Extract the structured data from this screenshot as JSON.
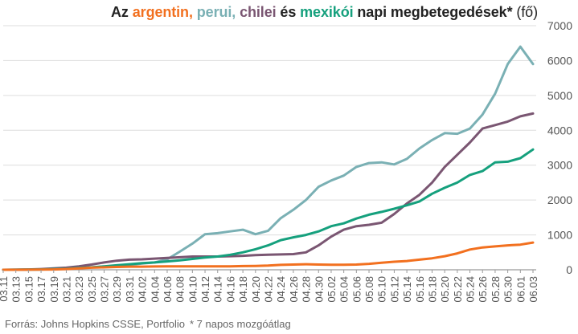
{
  "title": {
    "prefix": "Az",
    "argentina": "argentin,",
    "peru": "perui,",
    "chile": "chilei",
    "conj": "és",
    "mexico": "mexikói",
    "suffix": "napi megbetegedések*",
    "unit": "(fő)"
  },
  "footer": {
    "source": "Forrás: Johns Hopkins CSSE, Portfolio",
    "note": "* 7 napos mozgóátlag"
  },
  "chart_data": {
    "type": "line",
    "x": [
      "03.11",
      "03.13",
      "03.15",
      "03.17",
      "03.19",
      "03.21",
      "03.23",
      "03.25",
      "03.27",
      "03.29",
      "03.31",
      "04.02",
      "04.04",
      "04.06",
      "04.08",
      "04.10",
      "04.12",
      "04.14",
      "04.16",
      "04.18",
      "04.20",
      "04.22",
      "04.24",
      "04.26",
      "04.28",
      "04.30",
      "05.02",
      "05.04",
      "05.06",
      "05.08",
      "05.10",
      "05.12",
      "05.14",
      "05.16",
      "05.18",
      "05.20",
      "05.22",
      "05.24",
      "05.26",
      "05.28",
      "05.30",
      "06.01",
      "06.03"
    ],
    "ylim": [
      0,
      7000
    ],
    "yticks": [
      0,
      1000,
      2000,
      3000,
      4000,
      5000,
      6000,
      7000
    ],
    "grid": true,
    "legend": "title",
    "series": [
      {
        "key": "peru",
        "color": "#7ab0b4",
        "values": [
          0,
          2,
          5,
          10,
          18,
          30,
          50,
          70,
          90,
          110,
          140,
          180,
          210,
          300,
          520,
          750,
          1020,
          1050,
          1100,
          1150,
          1020,
          1120,
          1480,
          1720,
          2000,
          2380,
          2560,
          2700,
          2950,
          3060,
          3080,
          3020,
          3180,
          3480,
          3720,
          3920,
          3900,
          4050,
          4450,
          5050,
          5900,
          6400,
          5900
        ]
      },
      {
        "key": "chile",
        "color": "#7a5672",
        "values": [
          0,
          2,
          10,
          20,
          40,
          60,
          100,
          150,
          210,
          260,
          290,
          300,
          320,
          340,
          360,
          380,
          380,
          380,
          390,
          400,
          420,
          430,
          440,
          450,
          500,
          700,
          950,
          1150,
          1250,
          1290,
          1350,
          1600,
          1900,
          2150,
          2500,
          2950,
          3300,
          3650,
          4050,
          4150,
          4250,
          4400,
          4480
        ]
      },
      {
        "key": "mexico",
        "color": "#15a07d",
        "values": [
          0,
          2,
          5,
          10,
          20,
          30,
          50,
          70,
          100,
          130,
          160,
          190,
          210,
          240,
          270,
          310,
          350,
          380,
          430,
          500,
          590,
          700,
          850,
          930,
          1000,
          1100,
          1250,
          1330,
          1470,
          1580,
          1660,
          1750,
          1850,
          1960,
          2180,
          2350,
          2500,
          2720,
          2830,
          3080,
          3100,
          3200,
          3450
        ]
      },
      {
        "key": "argentina",
        "color": "#f2701f",
        "values": [
          0,
          1,
          2,
          5,
          10,
          20,
          40,
          60,
          70,
          80,
          90,
          90,
          95,
          100,
          100,
          100,
          100,
          100,
          100,
          105,
          110,
          120,
          140,
          150,
          160,
          150,
          145,
          145,
          150,
          170,
          200,
          230,
          250,
          290,
          330,
          390,
          470,
          580,
          640,
          670,
          700,
          720,
          780
        ]
      }
    ]
  }
}
